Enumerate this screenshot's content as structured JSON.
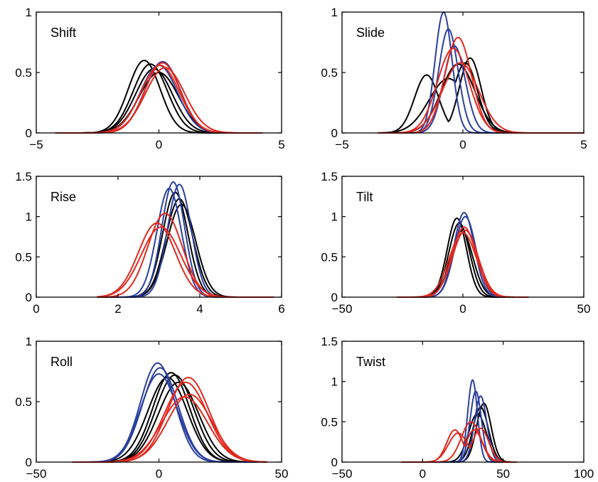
{
  "colors": {
    "black": "#000000",
    "blue": "#2b3f9e",
    "red": "#e02a1f"
  },
  "chart_data": [
    {
      "type": "line",
      "title": "Shift",
      "xlim": [
        -5,
        5
      ],
      "ylim": [
        0,
        1
      ],
      "xticks": [
        -5,
        0,
        5
      ],
      "xtick_labels": [
        "−5",
        "0",
        "5"
      ],
      "yticks": [
        0,
        0.5,
        1
      ],
      "ytick_labels": [
        "0",
        "0.5",
        "1"
      ],
      "series": [
        {
          "color": "black",
          "mu": -0.6,
          "sigma": 0.65,
          "peak": 0.6,
          "xmin": -4.2,
          "xmax": 3.5
        },
        {
          "color": "black",
          "mu": -0.35,
          "sigma": 0.7,
          "peak": 0.57,
          "xmin": -4.2,
          "xmax": 3.5
        },
        {
          "color": "black",
          "mu": -0.2,
          "sigma": 0.75,
          "peak": 0.53,
          "xmin": -4.2,
          "xmax": 3.5
        },
        {
          "color": "black",
          "mu": 0.0,
          "sigma": 0.8,
          "peak": 0.5,
          "xmin": -4.2,
          "xmax": 3.5
        },
        {
          "color": "blue",
          "mu": 0.15,
          "sigma": 0.72,
          "peak": 0.59,
          "xmin": -4.2,
          "xmax": 3.8
        },
        {
          "color": "blue",
          "mu": 0.0,
          "sigma": 0.75,
          "peak": 0.56,
          "xmin": -4.2,
          "xmax": 3.8
        },
        {
          "color": "red",
          "mu": 0.15,
          "sigma": 0.72,
          "peak": 0.58,
          "xmin": -4.2,
          "xmax": 4.2
        },
        {
          "color": "red",
          "mu": 0.05,
          "sigma": 0.78,
          "peak": 0.56,
          "xmin": -4.2,
          "xmax": 4.2
        },
        {
          "color": "red",
          "mu": 0.25,
          "sigma": 0.8,
          "peak": 0.54,
          "xmin": -4.2,
          "xmax": 4.2
        }
      ]
    },
    {
      "type": "line",
      "title": "Slide",
      "xlim": [
        -5,
        5
      ],
      "ylim": [
        0,
        1
      ],
      "xticks": [
        -5,
        0,
        5
      ],
      "xtick_labels": [
        "−5",
        "0",
        "5"
      ],
      "yticks": [
        0,
        0.5,
        1
      ],
      "ytick_labels": [
        "0",
        "0.5",
        "1"
      ],
      "series": [
        {
          "color": "black",
          "mu": -1.5,
          "sigma": 0.5,
          "peak": 0.48,
          "xmin": -3.5,
          "xmax": 4.5,
          "mu2": 0.3,
          "sigma2": 0.45,
          "peak2": 0.62
        },
        {
          "color": "black",
          "mu": -0.6,
          "sigma": 0.8,
          "peak": 0.45,
          "xmin": -3.5,
          "xmax": 4.5,
          "mu2": 0.1,
          "sigma2": 0.5,
          "peak2": 0.58
        },
        {
          "color": "black",
          "mu": -0.2,
          "sigma": 0.7,
          "peak": 0.57,
          "xmin": -3.5,
          "xmax": 4.5
        },
        {
          "color": "blue",
          "mu": -0.8,
          "sigma": 0.35,
          "peak": 1.0,
          "xmin": -3.5,
          "xmax": 4.5
        },
        {
          "color": "blue",
          "mu": -0.6,
          "sigma": 0.4,
          "peak": 0.86,
          "xmin": -3.5,
          "xmax": 4.5
        },
        {
          "color": "blue",
          "mu": -0.35,
          "sigma": 0.45,
          "peak": 0.72,
          "xmin": -3.5,
          "xmax": 4.5
        },
        {
          "color": "red",
          "mu": -0.2,
          "sigma": 0.55,
          "peak": 0.79,
          "xmin": -3.5,
          "xmax": 5.0
        },
        {
          "color": "red",
          "mu": -0.4,
          "sigma": 0.65,
          "peak": 0.7,
          "xmin": -3.5,
          "xmax": 5.0
        },
        {
          "color": "red",
          "mu": -0.1,
          "sigma": 0.75,
          "peak": 0.58,
          "xmin": -3.5,
          "xmax": 5.0
        }
      ]
    },
    {
      "type": "line",
      "title": "Rise",
      "xlim": [
        0,
        6
      ],
      "ylim": [
        0,
        1.5
      ],
      "xticks": [
        0,
        2,
        4,
        6
      ],
      "xtick_labels": [
        "0",
        "2",
        "4",
        "6"
      ],
      "yticks": [
        0,
        0.5,
        1,
        1.5
      ],
      "ytick_labels": [
        "0",
        "0.5",
        "1",
        "1.5"
      ],
      "series": [
        {
          "color": "black",
          "mu": 3.5,
          "sigma": 0.33,
          "peak": 1.22,
          "xmin": 1.5,
          "xmax": 5.5
        },
        {
          "color": "black",
          "mu": 3.4,
          "sigma": 0.31,
          "peak": 1.3,
          "xmin": 1.5,
          "xmax": 5.5
        },
        {
          "color": "black",
          "mu": 3.55,
          "sigma": 0.35,
          "peak": 1.15,
          "xmin": 1.5,
          "xmax": 5.5
        },
        {
          "color": "blue",
          "mu": 3.35,
          "sigma": 0.28,
          "peak": 1.43,
          "xmin": 1.5,
          "xmax": 5.5
        },
        {
          "color": "blue",
          "mu": 3.5,
          "sigma": 0.29,
          "peak": 1.4,
          "xmin": 1.5,
          "xmax": 5.5
        },
        {
          "color": "blue",
          "mu": 3.25,
          "sigma": 0.3,
          "peak": 1.35,
          "xmin": 1.5,
          "xmax": 5.5
        },
        {
          "color": "red",
          "mu": 3.15,
          "sigma": 0.42,
          "peak": 1.04,
          "xmin": 1.5,
          "xmax": 5.8
        },
        {
          "color": "red",
          "mu": 2.95,
          "sigma": 0.45,
          "peak": 0.92,
          "xmin": 1.5,
          "xmax": 5.8
        },
        {
          "color": "red",
          "mu": 3.05,
          "sigma": 0.48,
          "peak": 0.87,
          "xmin": 1.5,
          "xmax": 5.8
        }
      ]
    },
    {
      "type": "line",
      "title": "Tilt",
      "xlim": [
        -50,
        50
      ],
      "ylim": [
        0,
        1.5
      ],
      "xticks": [
        -50,
        0,
        50
      ],
      "xtick_labels": [
        "−50",
        "0",
        "50"
      ],
      "yticks": [
        0,
        0.5,
        1,
        1.5
      ],
      "ytick_labels": [
        "0",
        "0.5",
        "1",
        "1.5"
      ],
      "series": [
        {
          "color": "black",
          "mu": -2.5,
          "sigma": 4.0,
          "peak": 0.98,
          "xmin": -27,
          "xmax": 25
        },
        {
          "color": "black",
          "mu": -1.5,
          "sigma": 4.3,
          "peak": 0.92,
          "xmin": -27,
          "xmax": 25
        },
        {
          "color": "black",
          "mu": -0.5,
          "sigma": 4.6,
          "peak": 0.82,
          "xmin": -27,
          "xmax": 25
        },
        {
          "color": "blue",
          "mu": 0.5,
          "sigma": 4.2,
          "peak": 1.05,
          "xmin": -27,
          "xmax": 25
        },
        {
          "color": "blue",
          "mu": 1.0,
          "sigma": 4.4,
          "peak": 1.0,
          "xmin": -27,
          "xmax": 25
        },
        {
          "color": "red",
          "mu": 0.5,
          "sigma": 5.0,
          "peak": 0.87,
          "xmin": -27,
          "xmax": 27
        },
        {
          "color": "red",
          "mu": 1.0,
          "sigma": 5.3,
          "peak": 0.83,
          "xmin": -27,
          "xmax": 27
        },
        {
          "color": "red",
          "mu": 0.0,
          "sigma": 5.6,
          "peak": 0.8,
          "xmin": -27,
          "xmax": 27
        }
      ]
    },
    {
      "type": "line",
      "title": "Roll",
      "xlim": [
        -50,
        50
      ],
      "ylim": [
        0,
        1
      ],
      "xticks": [
        -50,
        0,
        50
      ],
      "xtick_labels": [
        "−50",
        "0",
        "50"
      ],
      "yticks": [
        0,
        0.5,
        1
      ],
      "ytick_labels": [
        "0",
        "0.5",
        "1"
      ],
      "series": [
        {
          "color": "black",
          "mu": 5.0,
          "sigma": 7.5,
          "peak": 0.74,
          "xmin": -35,
          "xmax": 40
        },
        {
          "color": "black",
          "mu": 6.5,
          "sigma": 7.8,
          "peak": 0.72,
          "xmin": -35,
          "xmax": 40
        },
        {
          "color": "black",
          "mu": 3.5,
          "sigma": 8.0,
          "peak": 0.7,
          "xmin": -35,
          "xmax": 40
        },
        {
          "color": "black",
          "mu": 8.0,
          "sigma": 8.2,
          "peak": 0.66,
          "xmin": -35,
          "xmax": 40
        },
        {
          "color": "blue",
          "mu": -0.5,
          "sigma": 7.0,
          "peak": 0.82,
          "xmin": -35,
          "xmax": 40
        },
        {
          "color": "blue",
          "mu": 0.5,
          "sigma": 7.3,
          "peak": 0.78,
          "xmin": -35,
          "xmax": 40
        },
        {
          "color": "blue",
          "mu": 0.0,
          "sigma": 7.5,
          "peak": 0.73,
          "xmin": -35,
          "xmax": 40
        },
        {
          "color": "red",
          "mu": 12.0,
          "sigma": 8.5,
          "peak": 0.7,
          "xmin": -35,
          "xmax": 44
        },
        {
          "color": "red",
          "mu": 11.0,
          "sigma": 8.8,
          "peak": 0.66,
          "xmin": -35,
          "xmax": 44
        },
        {
          "color": "red",
          "mu": 12.5,
          "sigma": 9.0,
          "peak": 0.56,
          "xmin": -35,
          "xmax": 44
        },
        {
          "color": "red",
          "mu": 10.5,
          "sigma": 9.3,
          "peak": 0.54,
          "xmin": -35,
          "xmax": 44
        }
      ]
    },
    {
      "type": "line",
      "title": "Twist",
      "xlim": [
        -50,
        100
      ],
      "ylim": [
        0,
        1.5
      ],
      "xticks": [
        -50,
        0,
        50,
        100
      ],
      "xtick_labels": [
        "−50",
        "0",
        "50",
        "100"
      ],
      "yticks": [
        0,
        0.5,
        1,
        1.5
      ],
      "ytick_labels": [
        "0",
        "0.5",
        "1",
        "1.5"
      ],
      "series": [
        {
          "color": "black",
          "mu": 38,
          "sigma": 4.5,
          "peak": 0.73,
          "xmin": -13,
          "xmax": 58
        },
        {
          "color": "black",
          "mu": 36,
          "sigma": 4.8,
          "peak": 0.68,
          "xmin": -13,
          "xmax": 58
        },
        {
          "color": "black",
          "mu": 34,
          "sigma": 5.5,
          "peak": 0.6,
          "xmin": -13,
          "xmax": 58
        },
        {
          "color": "blue",
          "mu": 31,
          "sigma": 3.0,
          "peak": 1.02,
          "xmin": -13,
          "xmax": 58
        },
        {
          "color": "blue",
          "mu": 33,
          "sigma": 3.5,
          "peak": 0.88,
          "xmin": -13,
          "xmax": 58
        },
        {
          "color": "blue",
          "mu": 36,
          "sigma": 3.8,
          "peak": 0.82,
          "xmin": -13,
          "xmax": 58
        },
        {
          "color": "red",
          "mu": 20,
          "sigma": 5.0,
          "peak": 0.4,
          "xmin": -13,
          "xmax": 58,
          "mu2": 32,
          "sigma2": 5.0,
          "peak2": 0.4
        },
        {
          "color": "red",
          "mu": 30,
          "sigma": 6.0,
          "peak": 0.5,
          "xmin": -13,
          "xmax": 58
        },
        {
          "color": "red",
          "mu": 22,
          "sigma": 6.0,
          "peak": 0.36,
          "xmin": -13,
          "xmax": 58,
          "mu2": 36,
          "sigma2": 5.0,
          "peak2": 0.42
        }
      ]
    }
  ]
}
